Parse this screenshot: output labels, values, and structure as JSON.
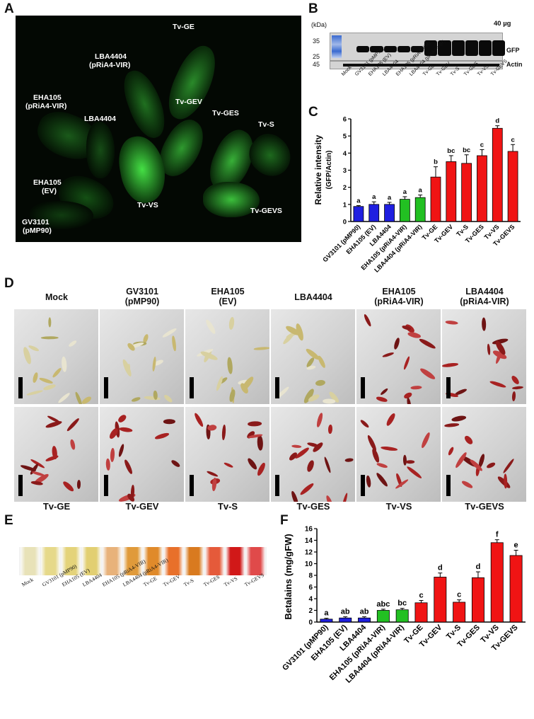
{
  "panels": {
    "a": "A",
    "b": "B",
    "c": "C",
    "d": "D",
    "e": "E",
    "f": "F"
  },
  "panel_a": {
    "labels": {
      "tvge": "Tv-GE",
      "lba_vir_1": "LBA4404",
      "lba_vir_2": "(pRiA4-VIR)",
      "eha_vir_1": "EHA105",
      "eha_vir_2": "(pRiA4-VIR)",
      "lba": "LBA4404",
      "tvgev": "Tv-GEV",
      "tvges": "Tv-GES",
      "tvs": "Tv-S",
      "eha_ev_1": "EHA105",
      "eha_ev_2": "(EV)",
      "tvvs": "Tv-VS",
      "tvgevs": "Tv-GEVS",
      "gv_1": "GV3101",
      "gv_2": "(pMP90)"
    }
  },
  "panel_b": {
    "kda": "(kDa)",
    "amount": "40 µg",
    "markers": [
      "35",
      "25",
      "45"
    ],
    "gfp": "GFP",
    "actin": "Actin",
    "lanes": [
      "Mock",
      "GV3101 (pMP90)",
      "EHA105 (EV)",
      "LBA4404",
      "EHA105 (pRiA4-VIR)",
      "LBA4404 (pRiA4-VIR)",
      "Tv-GE",
      "Tv-GEV",
      "Tv-S",
      "Tv-GES",
      "Tv-VS",
      "Tv-GEVS"
    ]
  },
  "panel_d": {
    "top_headers": [
      [
        "Mock",
        ""
      ],
      [
        "GV3101",
        "(pMP90)"
      ],
      [
        "EHA105",
        "(EV)"
      ],
      [
        "LBA4404",
        ""
      ],
      [
        "EHA105",
        "(pRiA4-VIR)"
      ],
      [
        "LBA4404",
        "(pRiA4-VIR)"
      ]
    ],
    "bottom_labels": [
      "Tv-GE",
      "Tv-GEV",
      "Tv-S",
      "Tv-GES",
      "Tv-VS",
      "Tv-GEVS"
    ]
  },
  "panel_e": {
    "tube_labels": [
      "Mock",
      "GV3101 (pMP90)",
      "EHA105 (EV)",
      "LBA4404",
      "EHA105 (pRiA4-VIR)",
      "LBA4404 (pRiA4-VIR)",
      "Tv-GE",
      "Tv-GEV",
      "Tv-S",
      "Tv-GES",
      "Tv-VS",
      "Tv-GEVS"
    ],
    "tube_colors": [
      "#e8e2b8",
      "#e6d98a",
      "#e4d37a",
      "#e2cf72",
      "#e8b27a",
      "#e09a3a",
      "#e08a2a",
      "#e8702a",
      "#d97a1f",
      "#e55a3a",
      "#d11818",
      "#e04a4a"
    ]
  },
  "chart_data": [
    {
      "type": "bar",
      "panel": "C",
      "ylabel": "Relative intensity",
      "ylabel2": "(GFP/Actin)",
      "ylim": [
        0,
        6
      ],
      "yticks": [
        "0",
        "1",
        "2",
        "3",
        "4",
        "5",
        "6"
      ],
      "categories": [
        "GV3101 (pMP90)",
        "EHA105 (EV)",
        "LBA4404",
        "EHA105 (pRiA4-VIR)",
        "LBA4404 (pRiA4-VIR)",
        "Tv-GE",
        "Tv-GEV",
        "Tv-S",
        "Tv-GES",
        "Tv-VS",
        "Tv-GEVS"
      ],
      "values": [
        0.88,
        1.0,
        1.0,
        1.3,
        1.4,
        2.6,
        3.5,
        3.4,
        3.85,
        5.45,
        4.1
      ],
      "errors": [
        0.05,
        0.15,
        0.12,
        0.15,
        0.15,
        0.6,
        0.35,
        0.5,
        0.35,
        0.15,
        0.4
      ],
      "letters": [
        "a",
        "a",
        "a",
        "a",
        "a",
        "b",
        "bc",
        "bc",
        "c",
        "d",
        "c"
      ],
      "colors": [
        "#1f1fe0",
        "#1f1fe0",
        "#1f1fe0",
        "#22c022",
        "#22c022",
        "#f01414",
        "#f01414",
        "#f01414",
        "#f01414",
        "#f01414",
        "#f01414"
      ]
    },
    {
      "type": "bar",
      "panel": "F",
      "ylabel": "Betalains (mg/gFW)",
      "ylim": [
        0,
        16
      ],
      "yticks": [
        "0",
        "2",
        "4",
        "6",
        "8",
        "10",
        "12",
        "14",
        "16"
      ],
      "categories": [
        "GV3101 (pMP90)",
        "EHA105 (EV)",
        "LBA4404",
        "EHA105 (pRiA4-VIR)",
        "LBA4404 (pRiA4-VIR)",
        "Tv-GE",
        "Tv-GEV",
        "Tv-S",
        "Tv-GES",
        "Tv-VS",
        "Tv-GEVS"
      ],
      "values": [
        0.5,
        0.7,
        0.7,
        2.0,
        2.1,
        3.3,
        7.7,
        3.4,
        7.6,
        13.6,
        11.4
      ],
      "errors": [
        0.15,
        0.2,
        0.2,
        0.2,
        0.25,
        0.4,
        0.7,
        0.4,
        1.0,
        0.5,
        0.9
      ],
      "letters": [
        "a",
        "ab",
        "ab",
        "abc",
        "bc",
        "c",
        "d",
        "c",
        "d",
        "f",
        "e"
      ],
      "colors": [
        "#1f1fe0",
        "#1f1fe0",
        "#1f1fe0",
        "#22c022",
        "#22c022",
        "#f01414",
        "#f01414",
        "#f01414",
        "#f01414",
        "#f01414",
        "#f01414"
      ]
    }
  ]
}
